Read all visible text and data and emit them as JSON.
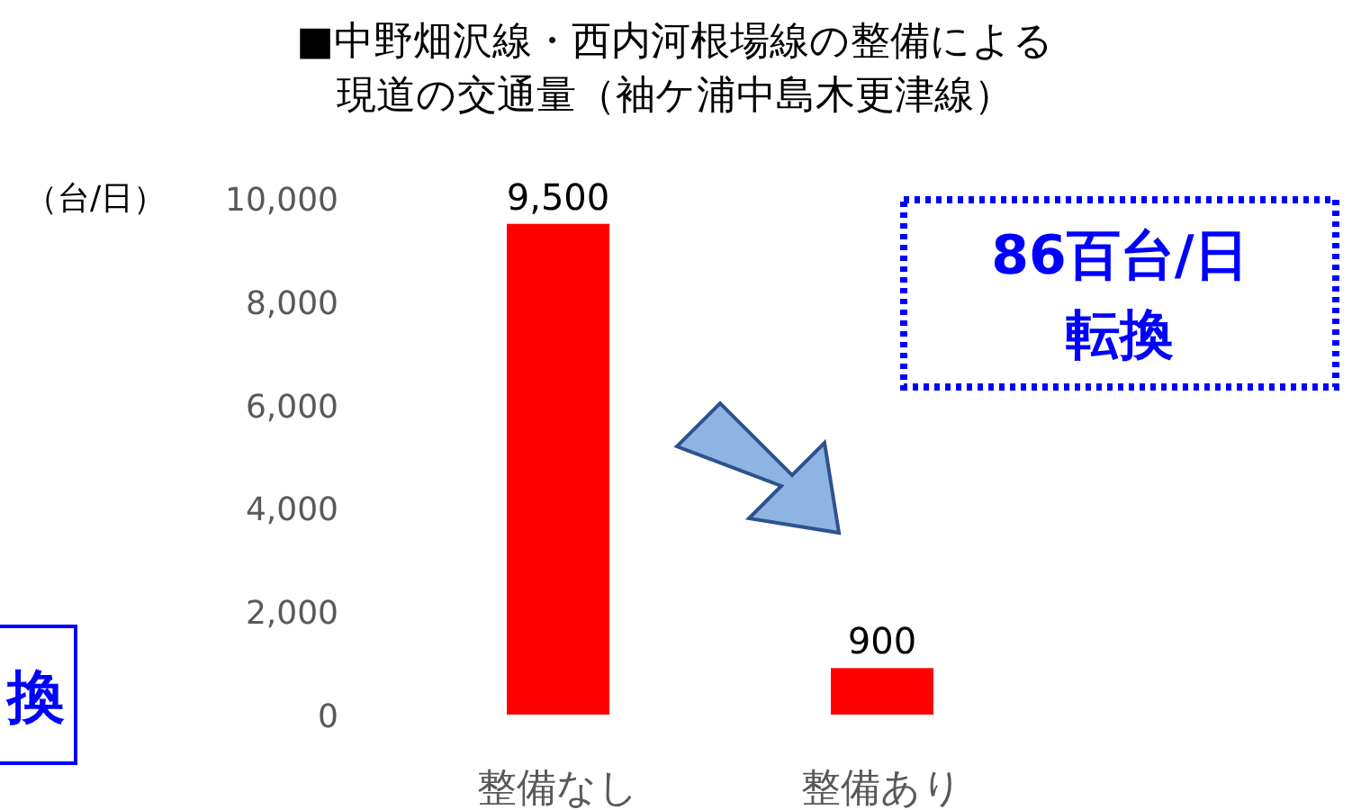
{
  "chart_data": {
    "type": "bar",
    "title": "■中野畑沢線・西内河根場線の整備による",
    "subtitle": "現道の交通量（袖ケ浦中島木更津線）",
    "ylabel": "（台/日）",
    "categories": [
      "整備なし",
      "整備あり"
    ],
    "values": [
      9500,
      900
    ],
    "color": "#ff0000",
    "ylim": [
      0,
      10000
    ],
    "yticks": [
      {
        "value": 0,
        "label": "0"
      },
      {
        "value": 2000,
        "label": "2,000"
      },
      {
        "value": 4000,
        "label": "4,000"
      },
      {
        "value": 6000,
        "label": "6,000"
      },
      {
        "value": 8000,
        "label": "8,000"
      },
      {
        "value": 10000,
        "label": "10,000"
      }
    ],
    "value_labels": [
      "9,500",
      "900"
    ],
    "grid": false,
    "annotations": [
      "86百台/日",
      "転換",
      "換"
    ]
  }
}
